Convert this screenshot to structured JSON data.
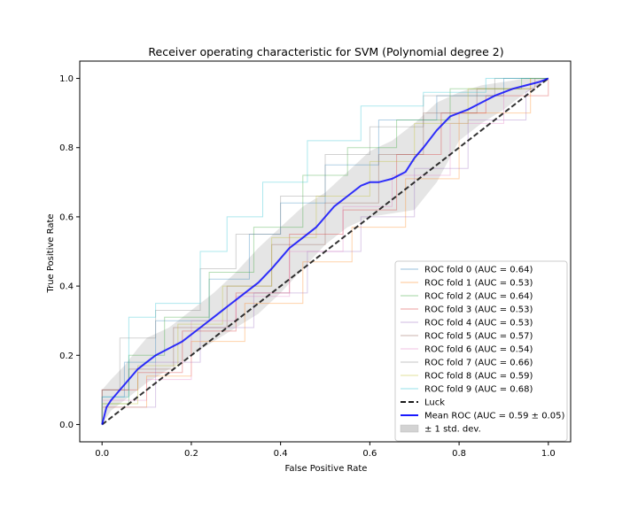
{
  "chart_data": {
    "type": "line",
    "title": "Receiver operating characteristic for SVM (Polynomial degree 2)",
    "xlabel": "False Positive Rate",
    "ylabel": "True Positive Rate",
    "xlim": [
      -0.05,
      1.05
    ],
    "ylim": [
      -0.05,
      1.05
    ],
    "xticks": [
      "0.0",
      "0.2",
      "0.4",
      "0.6",
      "0.8",
      "1.0"
    ],
    "yticks": [
      "0.0",
      "0.2",
      "0.4",
      "0.6",
      "0.8",
      "1.0"
    ],
    "grid": false,
    "legend_position": "lower right",
    "series": [
      {
        "name": "ROC fold 0 (AUC = 0.64)",
        "color": "#1f77b4",
        "x": [
          0,
          0,
          0.05,
          0.05,
          0.12,
          0.12,
          0.24,
          0.24,
          0.33,
          0.33,
          0.4,
          0.4,
          0.5,
          0.5,
          0.62,
          0.62,
          0.75,
          0.75,
          0.9,
          0.9,
          1.0
        ],
        "y": [
          0,
          0.08,
          0.08,
          0.18,
          0.18,
          0.3,
          0.3,
          0.42,
          0.42,
          0.55,
          0.55,
          0.64,
          0.64,
          0.75,
          0.75,
          0.88,
          0.88,
          0.95,
          0.95,
          1.0,
          1.0
        ]
      },
      {
        "name": "ROC fold 1 (AUC = 0.53)",
        "color": "#ff7f0e",
        "x": [
          0,
          0,
          0.1,
          0.1,
          0.2,
          0.2,
          0.32,
          0.32,
          0.45,
          0.45,
          0.56,
          0.56,
          0.68,
          0.68,
          0.8,
          0.8,
          0.96,
          0.96,
          1.0
        ],
        "y": [
          0,
          0.05,
          0.05,
          0.14,
          0.14,
          0.24,
          0.24,
          0.35,
          0.35,
          0.47,
          0.47,
          0.57,
          0.57,
          0.71,
          0.71,
          0.9,
          0.9,
          1.0,
          1.0
        ]
      },
      {
        "name": "ROC fold 2 (AUC = 0.64)",
        "color": "#2ca02c",
        "x": [
          0,
          0,
          0.06,
          0.06,
          0.14,
          0.14,
          0.24,
          0.24,
          0.34,
          0.34,
          0.45,
          0.45,
          0.55,
          0.55,
          0.66,
          0.66,
          0.78,
          0.78,
          0.94,
          0.94,
          1.0
        ],
        "y": [
          0,
          0.06,
          0.06,
          0.2,
          0.2,
          0.31,
          0.31,
          0.44,
          0.44,
          0.57,
          0.57,
          0.72,
          0.72,
          0.8,
          0.8,
          0.88,
          0.88,
          0.97,
          0.97,
          1.0,
          1.0
        ]
      },
      {
        "name": "ROC fold 3 (AUC = 0.53)",
        "color": "#d62728",
        "x": [
          0,
          0,
          0.08,
          0.08,
          0.18,
          0.18,
          0.3,
          0.3,
          0.42,
          0.42,
          0.54,
          0.54,
          0.66,
          0.66,
          0.76,
          0.76,
          0.86,
          0.86,
          1.0,
          1.0
        ],
        "y": [
          0,
          0.1,
          0.1,
          0.15,
          0.15,
          0.27,
          0.27,
          0.38,
          0.38,
          0.55,
          0.55,
          0.62,
          0.62,
          0.78,
          0.78,
          0.9,
          0.9,
          0.95,
          0.95,
          1.0
        ]
      },
      {
        "name": "ROC fold 4 (AUC = 0.53)",
        "color": "#9467bd",
        "x": [
          0,
          0,
          0.12,
          0.12,
          0.22,
          0.22,
          0.34,
          0.34,
          0.46,
          0.46,
          0.58,
          0.58,
          0.7,
          0.7,
          0.82,
          0.82,
          0.95,
          0.95,
          1.0
        ],
        "y": [
          0,
          0.05,
          0.05,
          0.18,
          0.18,
          0.28,
          0.28,
          0.38,
          0.38,
          0.5,
          0.5,
          0.6,
          0.6,
          0.74,
          0.74,
          0.88,
          0.88,
          0.96,
          1.0
        ]
      },
      {
        "name": "ROC fold 5 (AUC = 0.57)",
        "color": "#8c564b",
        "x": [
          0,
          0,
          0.06,
          0.06,
          0.16,
          0.16,
          0.28,
          0.28,
          0.38,
          0.38,
          0.5,
          0.5,
          0.62,
          0.62,
          0.72,
          0.72,
          0.84,
          0.84,
          0.97,
          0.97,
          1.0
        ],
        "y": [
          0,
          0.1,
          0.1,
          0.16,
          0.16,
          0.28,
          0.28,
          0.4,
          0.4,
          0.52,
          0.52,
          0.64,
          0.64,
          0.78,
          0.78,
          0.9,
          0.9,
          0.97,
          0.97,
          1.0,
          1.0
        ]
      },
      {
        "name": "ROC fold 6 (AUC = 0.54)",
        "color": "#e377c2",
        "x": [
          0,
          0,
          0.1,
          0.1,
          0.2,
          0.2,
          0.3,
          0.3,
          0.42,
          0.42,
          0.54,
          0.54,
          0.65,
          0.65,
          0.78,
          0.78,
          0.9,
          0.9,
          1.0
        ],
        "y": [
          0,
          0.07,
          0.07,
          0.13,
          0.13,
          0.3,
          0.3,
          0.37,
          0.37,
          0.5,
          0.5,
          0.63,
          0.63,
          0.72,
          0.72,
          0.87,
          0.87,
          0.96,
          1.0
        ]
      },
      {
        "name": "ROC fold 7 (AUC = 0.66)",
        "color": "#7f7f7f",
        "x": [
          0,
          0,
          0.04,
          0.04,
          0.12,
          0.12,
          0.22,
          0.22,
          0.3,
          0.3,
          0.4,
          0.4,
          0.5,
          0.5,
          0.6,
          0.6,
          0.72,
          0.72,
          0.88,
          0.88,
          1.0
        ],
        "y": [
          0,
          0.1,
          0.1,
          0.25,
          0.25,
          0.33,
          0.33,
          0.45,
          0.45,
          0.55,
          0.55,
          0.66,
          0.66,
          0.78,
          0.78,
          0.86,
          0.86,
          0.95,
          0.95,
          1.0,
          1.0
        ]
      },
      {
        "name": "ROC fold 8 (AUC = 0.59)",
        "color": "#bcbd22",
        "x": [
          0,
          0,
          0.08,
          0.08,
          0.17,
          0.17,
          0.27,
          0.27,
          0.38,
          0.38,
          0.48,
          0.48,
          0.6,
          0.6,
          0.7,
          0.7,
          0.82,
          0.82,
          0.96,
          0.96,
          1.0
        ],
        "y": [
          0,
          0.06,
          0.06,
          0.17,
          0.17,
          0.29,
          0.29,
          0.4,
          0.4,
          0.54,
          0.54,
          0.66,
          0.66,
          0.76,
          0.76,
          0.87,
          0.87,
          0.97,
          0.97,
          1.0,
          1.0
        ]
      },
      {
        "name": "ROC fold 9 (AUC = 0.68)",
        "color": "#17becf",
        "x": [
          0,
          0,
          0.06,
          0.06,
          0.12,
          0.12,
          0.22,
          0.22,
          0.28,
          0.28,
          0.36,
          0.36,
          0.46,
          0.46,
          0.58,
          0.58,
          0.72,
          0.72,
          0.86,
          0.86,
          1.0
        ],
        "y": [
          0,
          0.08,
          0.08,
          0.31,
          0.31,
          0.35,
          0.35,
          0.5,
          0.5,
          0.6,
          0.6,
          0.7,
          0.7,
          0.82,
          0.82,
          0.92,
          0.92,
          0.96,
          0.96,
          1.0,
          1.0
        ]
      },
      {
        "name": "Luck",
        "color": "#000000",
        "dashed": true,
        "x": [
          0,
          1
        ],
        "y": [
          0,
          1
        ]
      },
      {
        "name": "Mean ROC (AUC = 0.59 ± 0.05)",
        "color": "#0000ff",
        "x": [
          0,
          0.01,
          0.02,
          0.04,
          0.06,
          0.08,
          0.1,
          0.12,
          0.15,
          0.18,
          0.2,
          0.22,
          0.25,
          0.28,
          0.3,
          0.32,
          0.35,
          0.38,
          0.4,
          0.42,
          0.45,
          0.48,
          0.5,
          0.52,
          0.55,
          0.58,
          0.6,
          0.62,
          0.65,
          0.68,
          0.7,
          0.72,
          0.75,
          0.78,
          0.8,
          0.82,
          0.85,
          0.88,
          0.9,
          0.92,
          0.95,
          0.98,
          1.0
        ],
        "y": [
          0,
          0.05,
          0.07,
          0.1,
          0.13,
          0.16,
          0.18,
          0.2,
          0.22,
          0.24,
          0.26,
          0.28,
          0.31,
          0.34,
          0.36,
          0.38,
          0.41,
          0.45,
          0.48,
          0.51,
          0.54,
          0.57,
          0.6,
          0.63,
          0.66,
          0.69,
          0.7,
          0.7,
          0.71,
          0.73,
          0.77,
          0.8,
          0.85,
          0.89,
          0.9,
          0.91,
          0.93,
          0.95,
          0.96,
          0.97,
          0.98,
          0.99,
          1.0
        ]
      }
    ],
    "std_band": {
      "name": "± 1 std. dev.",
      "color": "#d3d3d3",
      "x": [
        0,
        0.02,
        0.05,
        0.08,
        0.1,
        0.15,
        0.2,
        0.25,
        0.3,
        0.35,
        0.4,
        0.45,
        0.5,
        0.55,
        0.6,
        0.65,
        0.7,
        0.75,
        0.8,
        0.85,
        0.9,
        0.95,
        1.0
      ],
      "upper": [
        0.1,
        0.13,
        0.17,
        0.22,
        0.25,
        0.28,
        0.33,
        0.38,
        0.44,
        0.51,
        0.57,
        0.63,
        0.67,
        0.73,
        0.79,
        0.82,
        0.87,
        0.93,
        0.96,
        0.98,
        0.99,
        1.0,
        1.0
      ],
      "lower": [
        0,
        0.04,
        0.07,
        0.1,
        0.12,
        0.16,
        0.2,
        0.24,
        0.28,
        0.32,
        0.38,
        0.45,
        0.52,
        0.57,
        0.6,
        0.61,
        0.62,
        0.7,
        0.82,
        0.87,
        0.91,
        0.96,
        1.0
      ]
    }
  }
}
